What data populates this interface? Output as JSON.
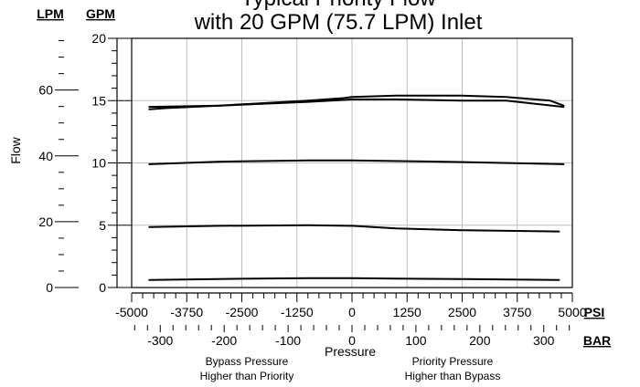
{
  "chart_data": {
    "type": "line",
    "title": "Typical Priority Flow",
    "subtitle": "with 20 GPM (75.7 LPM) Inlet",
    "left_axis_label": "Flow",
    "gpm_unit": "GPM",
    "lpm_unit": "LPM",
    "psi_unit": "PSI",
    "bar_unit": "BAR",
    "xlabel": "Pressure",
    "note_left": [
      "Bypass Pressure",
      "Higher than Priority"
    ],
    "note_right": [
      "Priority Pressure",
      "Higher than Bypass"
    ],
    "xlim_psi": [
      -5000,
      5000
    ],
    "ylim_gpm": [
      0,
      20
    ],
    "grid": true,
    "psi_ticks": [
      -5000,
      -3750,
      -2500,
      -1250,
      0,
      1250,
      2500,
      3750,
      5000
    ],
    "psi_tick_labels": [
      "-5000",
      "-3750",
      "-2500",
      "-1250",
      "0",
      "1250",
      "2500",
      "3750",
      "5000"
    ],
    "bar_ticks": [
      -300,
      -200,
      -100,
      0,
      100,
      200,
      300
    ],
    "bar_tick_labels": [
      "-300",
      "-200",
      "-100",
      "0",
      "100",
      "200",
      "300"
    ],
    "gpm_ticks": [
      0,
      5,
      10,
      15,
      20
    ],
    "gpm_tick_labels": [
      "0",
      "5",
      "10",
      "15",
      "20"
    ],
    "lpm_ticks": [
      0,
      20,
      40,
      60
    ],
    "lpm_tick_labels": [
      "0",
      "20",
      "40",
      "60"
    ],
    "series": [
      {
        "x": [
          -4600,
          -4200,
          -3000,
          -2000,
          -1000,
          -200,
          0,
          1000,
          2500,
          3500,
          4500,
          4800
        ],
        "y": [
          14.3,
          14.4,
          14.6,
          14.8,
          15.0,
          15.2,
          15.3,
          15.4,
          15.4,
          15.3,
          15.0,
          14.6
        ]
      },
      {
        "x": [
          -4600,
          -3000,
          -1000,
          0,
          1000,
          2500,
          3500,
          4800
        ],
        "y": [
          14.5,
          14.6,
          14.9,
          15.1,
          15.1,
          15.0,
          15.0,
          14.5
        ]
      },
      {
        "x": [
          -4600,
          -3000,
          -1000,
          0,
          2000,
          4800
        ],
        "y": [
          9.9,
          10.1,
          10.2,
          10.2,
          10.1,
          9.9
        ]
      },
      {
        "x": [
          -4600,
          -3000,
          -1000,
          0,
          1000,
          2500,
          4700
        ],
        "y": [
          4.85,
          4.95,
          5.0,
          4.95,
          4.75,
          4.6,
          4.5
        ]
      },
      {
        "x": [
          -4600,
          -2500,
          -1000,
          0,
          1000,
          2500,
          4700
        ],
        "y": [
          0.6,
          0.7,
          0.75,
          0.75,
          0.72,
          0.68,
          0.6
        ]
      }
    ]
  }
}
